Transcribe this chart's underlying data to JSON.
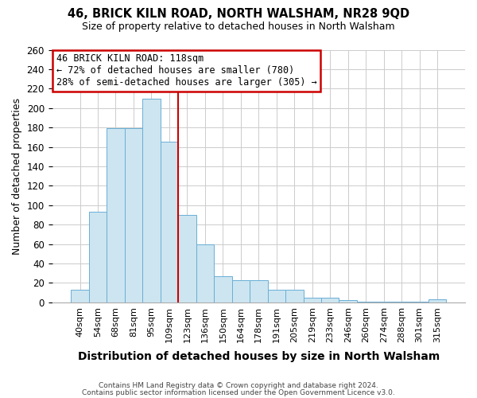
{
  "title": "46, BRICK KILN ROAD, NORTH WALSHAM, NR28 9QD",
  "subtitle": "Size of property relative to detached houses in North Walsham",
  "xlabel": "Distribution of detached houses by size in North Walsham",
  "ylabel": "Number of detached properties",
  "bar_labels": [
    "40sqm",
    "54sqm",
    "68sqm",
    "81sqm",
    "95sqm",
    "109sqm",
    "123sqm",
    "136sqm",
    "150sqm",
    "164sqm",
    "178sqm",
    "191sqm",
    "205sqm",
    "219sqm",
    "233sqm",
    "246sqm",
    "260sqm",
    "274sqm",
    "288sqm",
    "301sqm",
    "315sqm"
  ],
  "bar_values": [
    13,
    93,
    179,
    179,
    210,
    165,
    90,
    60,
    27,
    23,
    23,
    13,
    13,
    5,
    5,
    2,
    1,
    1,
    1,
    1,
    3
  ],
  "bar_color": "#cce5f0",
  "bar_edge_color": "#6aaed6",
  "annotation_title": "46 BRICK KILN ROAD: 118sqm",
  "annotation_line1": "← 72% of detached houses are smaller (780)",
  "annotation_line2": "28% of semi-detached houses are larger (305) →",
  "annotation_box_color": "#ffffff",
  "annotation_box_edge_color": "#cc0000",
  "vline_color": "#cc0000",
  "vline_index": 6,
  "ylim": [
    0,
    260
  ],
  "yticks": [
    0,
    20,
    40,
    60,
    80,
    100,
    120,
    140,
    160,
    180,
    200,
    220,
    240,
    260
  ],
  "footer1": "Contains HM Land Registry data © Crown copyright and database right 2024.",
  "footer2": "Contains public sector information licensed under the Open Government Licence v3.0.",
  "background_color": "#ffffff",
  "grid_color": "#cccccc"
}
